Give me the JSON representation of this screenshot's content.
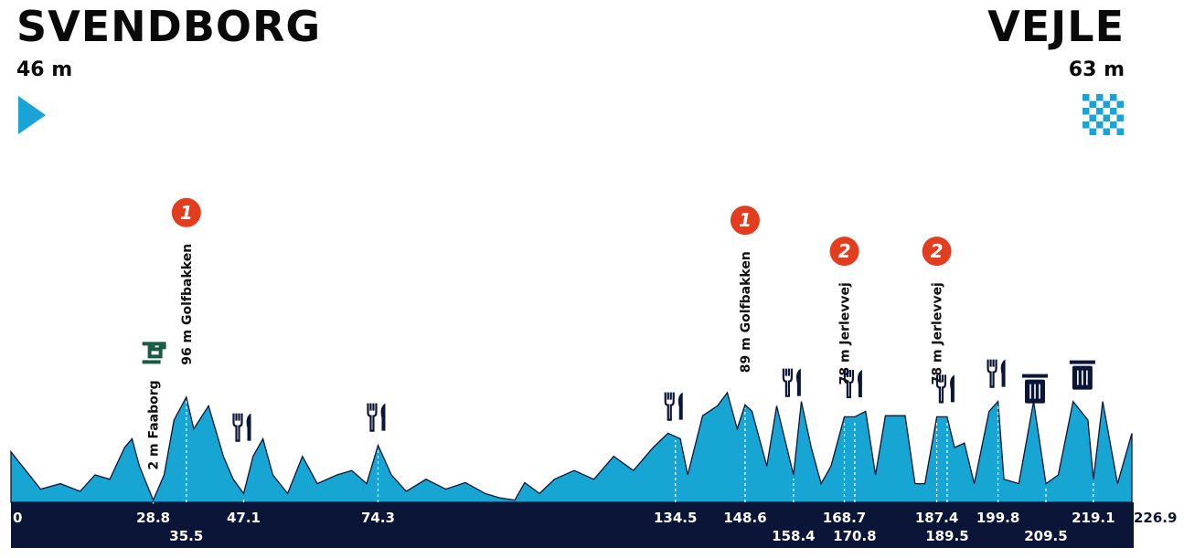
{
  "start": {
    "name": "SVENDBORG",
    "elevation": "46 m"
  },
  "finish": {
    "name": "VEJLE",
    "elevation": "63 m"
  },
  "chart_data": {
    "type": "area",
    "color": "#17a5d3",
    "x": [
      0,
      3,
      6,
      10,
      14,
      17,
      20,
      23,
      24.5,
      26,
      28.8,
      31,
      33,
      35.5,
      37,
      40,
      43,
      45,
      47.1,
      49,
      51,
      53,
      56,
      59,
      62,
      66,
      69,
      72,
      74.3,
      77,
      80,
      84,
      88,
      92,
      96,
      99,
      102,
      104,
      107,
      110,
      114,
      118,
      122,
      126,
      130,
      133,
      135.5,
      137,
      140,
      143,
      145,
      147,
      148.6,
      150,
      153,
      155,
      158.4,
      160,
      162,
      164,
      166,
      168.7,
      170.8,
      173,
      175,
      177,
      181,
      183,
      185,
      187.4,
      189.5,
      191,
      193,
      195,
      198,
      199.8,
      201,
      204,
      207,
      209.5,
      212,
      215,
      218,
      219.1,
      221,
      224,
      226.9
    ],
    "values": [
      46,
      29,
      12,
      17,
      10,
      25,
      21,
      50,
      58,
      33,
      2,
      25,
      75,
      96,
      67,
      88,
      42,
      21,
      8,
      42,
      58,
      25,
      8,
      42,
      17,
      25,
      29,
      17,
      52,
      25,
      10,
      21,
      12,
      18,
      8,
      4,
      2,
      18,
      8,
      21,
      29,
      21,
      42,
      29,
      50,
      63,
      58,
      25,
      79,
      88,
      100,
      67,
      89,
      83,
      33,
      88,
      25,
      92,
      50,
      17,
      33,
      78,
      78,
      83,
      25,
      79,
      79,
      17,
      17,
      78,
      78,
      50,
      54,
      17,
      83,
      92,
      21,
      17,
      92,
      17,
      25,
      92,
      75,
      21,
      92,
      17,
      63
    ],
    "km_ticks": [
      0,
      28.8,
      35.5,
      47.1,
      74.3,
      134.5,
      148.6,
      158.4,
      168.7,
      170.8,
      187.4,
      189.5,
      199.8,
      209.5,
      219.1,
      226.9
    ],
    "sprints": [
      {
        "km": 28.8,
        "label": "2 m Faaborg"
      }
    ],
    "climbs": [
      {
        "km": 35.5,
        "label": "96 m Golfbakken",
        "category": "1"
      },
      {
        "km": 148.6,
        "label": "89 m Golfbakken",
        "category": "1"
      },
      {
        "km": 168.7,
        "label": "78 m Jerlevvej",
        "category": "2"
      },
      {
        "km": 187.4,
        "label": "78 m Jerlevvej",
        "category": "2"
      }
    ],
    "feed_zones": [
      47.1,
      74.3,
      134.5,
      158.4,
      170.8,
      189.5,
      199.8
    ],
    "waste_zones": [
      209.5,
      219.1
    ]
  }
}
